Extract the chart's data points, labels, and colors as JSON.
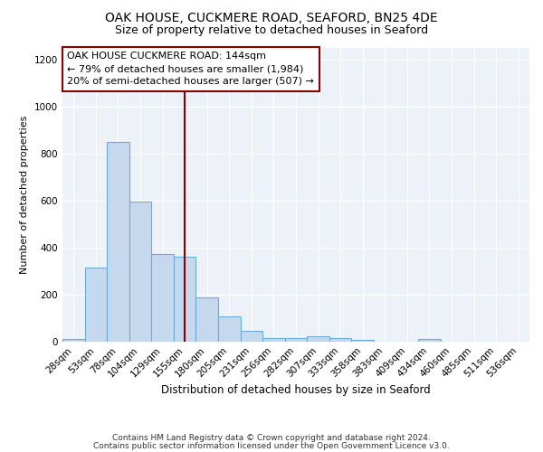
{
  "title1": "OAK HOUSE, CUCKMERE ROAD, SEAFORD, BN25 4DE",
  "title2": "Size of property relative to detached houses in Seaford",
  "xlabel": "Distribution of detached houses by size in Seaford",
  "ylabel": "Number of detached properties",
  "categories": [
    "28sqm",
    "53sqm",
    "78sqm",
    "104sqm",
    "129sqm",
    "155sqm",
    "180sqm",
    "205sqm",
    "231sqm",
    "256sqm",
    "282sqm",
    "307sqm",
    "333sqm",
    "358sqm",
    "383sqm",
    "409sqm",
    "434sqm",
    "460sqm",
    "485sqm",
    "511sqm",
    "536sqm"
  ],
  "values": [
    10,
    315,
    850,
    595,
    370,
    360,
    185,
    105,
    45,
    15,
    15,
    20,
    15,
    5,
    0,
    0,
    10,
    0,
    0,
    0,
    0
  ],
  "bar_color": "#c5d8ee",
  "bar_edge_color": "#6aaed6",
  "background_color": "#edf2f9",
  "ylim": [
    0,
    1250
  ],
  "yticks": [
    0,
    200,
    400,
    600,
    800,
    1000,
    1200
  ],
  "red_line_x": 5.0,
  "annotation_text": "OAK HOUSE CUCKMERE ROAD: 144sqm\n← 79% of detached houses are smaller (1,984)\n20% of semi-detached houses are larger (507) →",
  "footer1": "Contains HM Land Registry data © Crown copyright and database right 2024.",
  "footer2": "Contains public sector information licensed under the Open Government Licence v3.0.",
  "title1_fontsize": 10,
  "title2_fontsize": 9,
  "xlabel_fontsize": 8.5,
  "ylabel_fontsize": 8,
  "tick_fontsize": 7.5,
  "annotation_fontsize": 8,
  "footer_fontsize": 6.5
}
